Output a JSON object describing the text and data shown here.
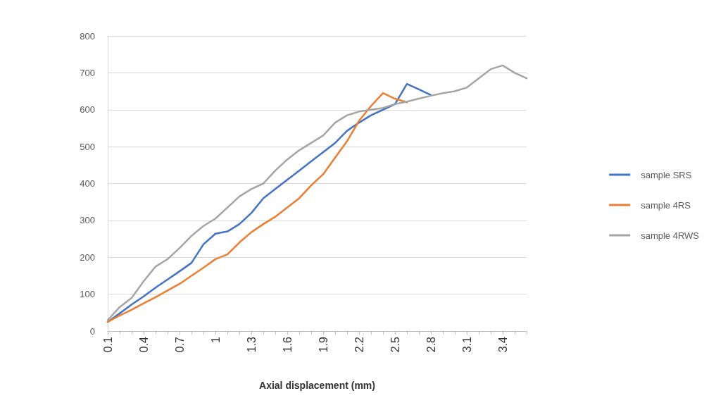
{
  "chart_data": {
    "type": "line",
    "xlabel": "Axial displacement (mm)",
    "categories": [
      "0.1",
      null,
      null,
      "0.4",
      null,
      null,
      "0.7",
      null,
      null,
      "1",
      null,
      null,
      "1.3",
      null,
      null,
      "1.6",
      null,
      null,
      "1.9",
      null,
      null,
      "2.2",
      null,
      null,
      "2.5",
      null,
      null,
      "2.8",
      null,
      null,
      "3.1",
      null,
      null,
      "3.4",
      null,
      null
    ],
    "series": [
      {
        "name": "sample SRS",
        "color": "#4472c4",
        "values": [
          25,
          48,
          72,
          94,
          118,
          140,
          162,
          185,
          235,
          264,
          270,
          290,
          320,
          360,
          385,
          410,
          435,
          460,
          485,
          510,
          543,
          565,
          585,
          600,
          615,
          670,
          655,
          640,
          null,
          null,
          null,
          null,
          null,
          null,
          null,
          null
        ]
      },
      {
        "name": "sample 4RS",
        "color": "#ed7d31",
        "values": [
          25,
          42,
          58,
          75,
          92,
          110,
          128,
          150,
          172,
          195,
          208,
          240,
          268,
          290,
          310,
          335,
          360,
          395,
          425,
          470,
          515,
          570,
          610,
          645,
          630,
          620,
          null,
          null,
          null,
          null,
          null,
          null,
          null,
          null,
          null,
          null
        ]
      },
      {
        "name": "sample 4RWS",
        "color": "#a5a5a5",
        "values": [
          30,
          65,
          90,
          135,
          175,
          195,
          225,
          258,
          285,
          305,
          335,
          365,
          385,
          400,
          435,
          465,
          490,
          510,
          530,
          565,
          585,
          595,
          600,
          605,
          615,
          622,
          630,
          638,
          645,
          650,
          660,
          685,
          710,
          720,
          700,
          685
        ]
      }
    ],
    "ylim": [
      0,
      800
    ],
    "yticks": [
      0,
      100,
      200,
      300,
      400,
      500,
      600,
      700,
      800
    ],
    "grid": "y",
    "legend": "right",
    "marker": "none",
    "line_style": "solid"
  }
}
